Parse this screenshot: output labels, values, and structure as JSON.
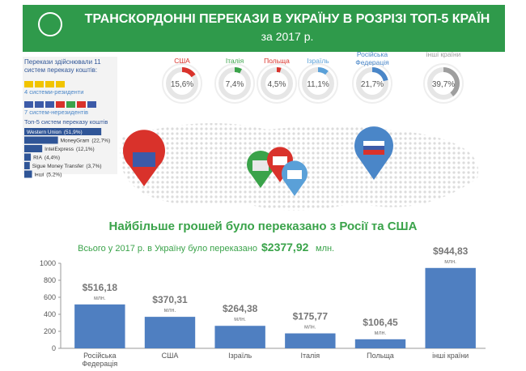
{
  "header": {
    "title": "ТРАНСКОРДОННІ ПЕРЕКАЗИ  В УКРАЇНУ В РОЗРІЗІ ТОП-5 КРАЇН",
    "subtitle": "за 2017 р."
  },
  "systems": {
    "title": "Перекази здійснювали 11 систем переказу коштів:",
    "residents": "4 системи-резиденти",
    "nonresidents": "7 систем-нерезидентів"
  },
  "headline": "Найбільше грошей було переказано з Росії та США",
  "total": {
    "text": "Всього у 2017 р. в Україну було переказано",
    "value": "$2377,92",
    "unit": "млн."
  },
  "chart_data": [
    {
      "type": "donut",
      "categories": [
        "США",
        "Італія",
        "Польща",
        "Ізраїль",
        "Російська Федерація",
        "інші країни"
      ],
      "values": [
        15.6,
        7.4,
        4.5,
        11.1,
        21.7,
        39.7
      ],
      "value_labels": [
        "15,6%",
        "7,4%",
        "4,5%",
        "11,1%",
        "21,7%",
        "39,7%"
      ],
      "colors": [
        "#d9322b",
        "#3aa34a",
        "#d9322b",
        "#5aa0d8",
        "#4a86c8",
        "#9e9e9e"
      ]
    },
    {
      "type": "hbar",
      "title": "Топ-5 систем переказу коштів",
      "categories": [
        "Western Union",
        "MoneyGram",
        "IntelExpress",
        "RIA",
        "Sigue Money Transfer",
        "інші"
      ],
      "values": [
        51.9,
        22.7,
        12.1,
        4.4,
        3.7,
        5.2
      ],
      "value_labels": [
        "(51,9%)",
        "(22,7%)",
        "(12,1%)",
        "(4,4%)",
        "(3,7%)",
        "(5,2%)"
      ],
      "color": "#2f5597"
    },
    {
      "type": "bar",
      "categories": [
        "Російська Федерація",
        "США",
        "Ізраїль",
        "Італія",
        "Польща",
        "інші країни"
      ],
      "values": [
        516.18,
        370.31,
        264.38,
        175.77,
        106.45,
        944.83
      ],
      "value_labels": [
        "$516,18",
        "$370,31",
        "$264,38",
        "$175,77",
        "$106,45",
        "$944,83"
      ],
      "value_unit": "млн.",
      "color": "#4f7fc1",
      "ylim": [
        0,
        1000
      ],
      "yticks": [
        0,
        200,
        400,
        600,
        800,
        1000
      ]
    }
  ]
}
